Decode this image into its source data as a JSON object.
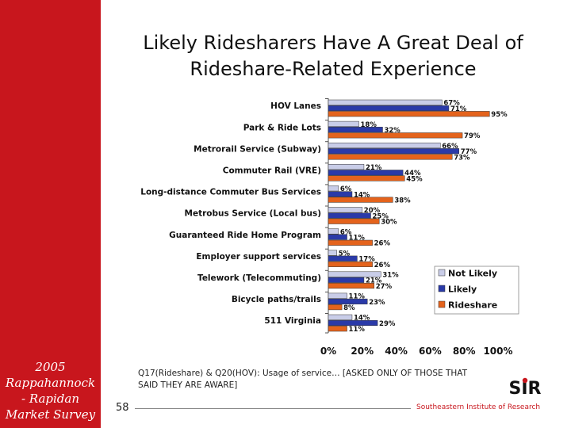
{
  "sidebar": {
    "lines": [
      "2005",
      "Rappahannock",
      "- Rapidan",
      "Market Survey"
    ]
  },
  "slide": {
    "title_lines": [
      "Likely Ridesharers Have A Great Deal of",
      "Rideshare-Related Experience"
    ],
    "footnote": "Q17(Rideshare) & Q20(HOV): Usage of service… [ASKED ONLY OF THOSE THAT SAID THEY ARE AWARE]",
    "page_number": "58",
    "organization": "Southeastern Institute of Research",
    "logo_text": "SIR"
  },
  "colors": {
    "sidebar": "#c8161d",
    "not_likely": "#c9cde8",
    "likely": "#2a3aa8",
    "rideshare": "#e4631c"
  },
  "chart_data": {
    "type": "bar",
    "orientation": "horizontal",
    "title": "Likely Ridesharers Have A Great Deal of Rideshare-Related Experience",
    "xlim": [
      0,
      100
    ],
    "xticks": [
      "0%",
      "20%",
      "40%",
      "60%",
      "80%",
      "100%"
    ],
    "categories": [
      "HOV Lanes",
      "Park & Ride Lots",
      "Metrorail Service (Subway)",
      "Commuter Rail (VRE)",
      "Long-distance Commuter Bus Services",
      "Metrobus Service (Local bus)",
      "Guaranteed Ride Home Program",
      "Employer support services",
      "Telework (Telecommuting)",
      "Bicycle paths/trails",
      "511 Virginia"
    ],
    "series": [
      {
        "name": "Not Likely",
        "color": "#c9cde8",
        "values": [
          67,
          18,
          66,
          21,
          6,
          20,
          6,
          5,
          31,
          11,
          14
        ]
      },
      {
        "name": "Likely",
        "color": "#2a3aa8",
        "values": [
          71,
          32,
          77,
          44,
          14,
          25,
          11,
          17,
          21,
          23,
          29
        ]
      },
      {
        "name": "Rideshare",
        "color": "#e4631c",
        "values": [
          95,
          79,
          73,
          45,
          38,
          30,
          26,
          26,
          27,
          8,
          11
        ]
      }
    ],
    "value_labels": [
      [
        "67%",
        "71%",
        "95%"
      ],
      [
        "18%",
        "32%",
        "79%"
      ],
      [
        "66%",
        "77%",
        "73%"
      ],
      [
        "21%",
        "44%",
        "45%"
      ],
      [
        "6%",
        "14%",
        "38%"
      ],
      [
        "20%",
        "25%",
        "30%"
      ],
      [
        "6%",
        "11%",
        "26%"
      ],
      [
        "5%",
        "17%",
        "26%"
      ],
      [
        "31%",
        "21%",
        "27%"
      ],
      [
        "11%",
        "23%",
        "8%"
      ],
      [
        "14%",
        "29%",
        "11%"
      ]
    ],
    "legend_position": "right"
  }
}
